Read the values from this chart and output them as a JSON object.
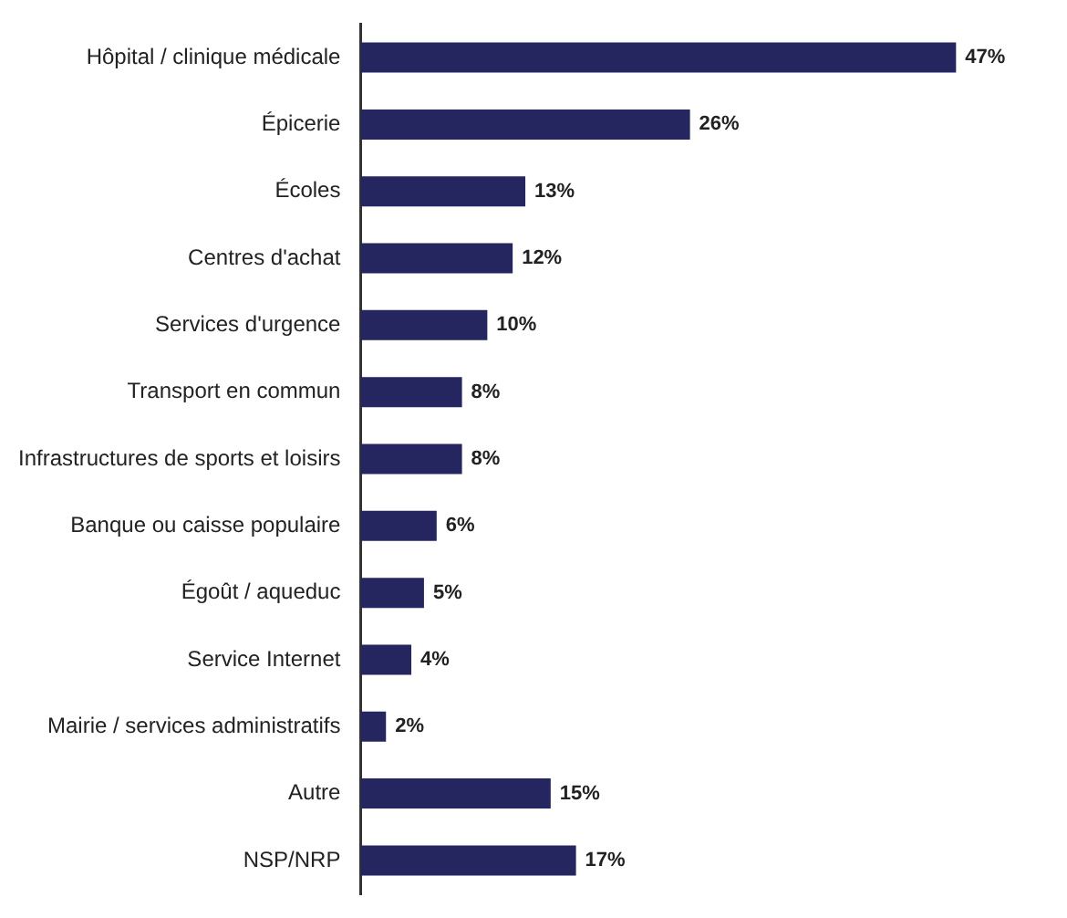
{
  "chart_data": {
    "type": "bar",
    "orientation": "horizontal",
    "color": "#25255f",
    "categories": [
      "Hôpital / clinique médicale",
      "Épicerie",
      "Écoles",
      "Centres d'achat",
      "Services d'urgence",
      "Transport en commun",
      "Infrastructures de sports et loisirs",
      "Banque ou caisse populaire",
      "Égoût / aqueduc",
      "Service Internet",
      "Mairie / services administratifs",
      "Autre",
      "NSP/NRP"
    ],
    "values": [
      47,
      26,
      13,
      12,
      10,
      8,
      8,
      6,
      5,
      4,
      2,
      15,
      17
    ],
    "value_labels": [
      "47%",
      "26%",
      "13%",
      "12%",
      "10%",
      "8%",
      "8%",
      "6%",
      "5%",
      "4%",
      "2%",
      "15%",
      "17%"
    ],
    "legend": false,
    "tick_labels": "y"
  }
}
